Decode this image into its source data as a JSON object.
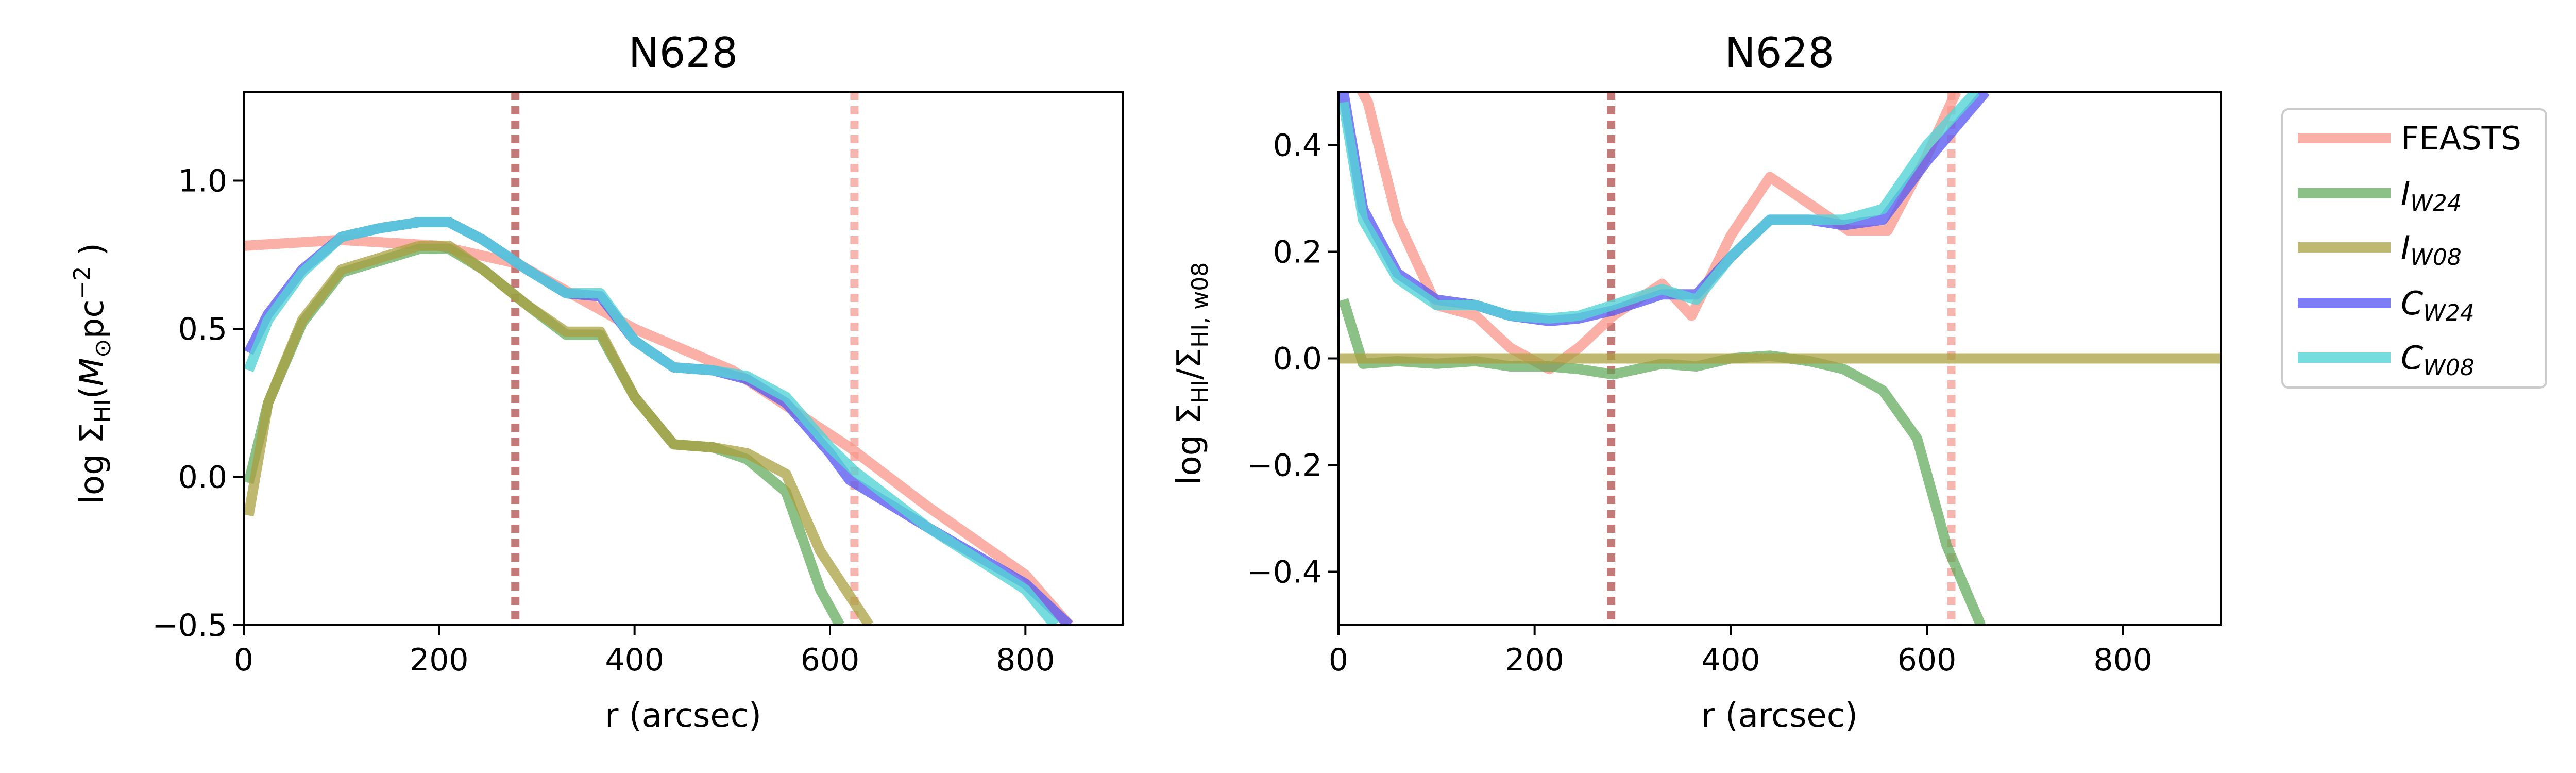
{
  "chart_data": [
    {
      "type": "line",
      "title": "N628",
      "xlabel": "r (arcsec)",
      "ylabel": "log Σ_HI(M_⊙pc^−2 )",
      "xlim": [
        0,
        900
      ],
      "ylim": [
        -0.5,
        1.3
      ],
      "xticks": [
        "0",
        "200",
        "400",
        "600",
        "800"
      ],
      "xtick_values": [
        0,
        200,
        400,
        600,
        800
      ],
      "yticks": [
        "−0.5",
        "0.0",
        "0.5",
        "1.0"
      ],
      "ytick_values": [
        -0.5,
        0.0,
        0.5,
        1.0
      ],
      "vlines": [
        {
          "x": 278,
          "color": "#c57a7a"
        },
        {
          "x": 625,
          "color": "#f5b6b0"
        }
      ],
      "series": [
        {
          "name": "FEASTS",
          "color": "#f8968a",
          "opacity": 0.75,
          "x": [
            0,
            100,
            200,
            280,
            400,
            500,
            560,
            620,
            700,
            800,
            845
          ],
          "y": [
            0.78,
            0.8,
            0.78,
            0.72,
            0.5,
            0.36,
            0.23,
            0.1,
            -0.1,
            -0.33,
            -0.5
          ]
        },
        {
          "name": "I_W24",
          "color": "#5aa552",
          "opacity": 0.7,
          "x": [
            5,
            25,
            60,
            100,
            140,
            180,
            210,
            245,
            290,
            330,
            365,
            400,
            440,
            480,
            515,
            555,
            590,
            610
          ],
          "y": [
            -0.02,
            0.25,
            0.52,
            0.69,
            0.73,
            0.77,
            0.77,
            0.7,
            0.58,
            0.48,
            0.48,
            0.27,
            0.11,
            0.1,
            0.06,
            -0.05,
            -0.38,
            -0.5
          ]
        },
        {
          "name": "I_W08",
          "color": "#a9a040",
          "opacity": 0.75,
          "x": [
            5,
            25,
            60,
            100,
            140,
            180,
            210,
            245,
            290,
            330,
            365,
            400,
            440,
            480,
            515,
            555,
            590,
            640
          ],
          "y": [
            -0.13,
            0.25,
            0.53,
            0.7,
            0.74,
            0.78,
            0.78,
            0.7,
            0.58,
            0.49,
            0.49,
            0.27,
            0.11,
            0.1,
            0.08,
            0.01,
            -0.25,
            -0.5
          ]
        },
        {
          "name": "C_W24",
          "color": "#5d5ef0",
          "opacity": 0.8,
          "x": [
            5,
            25,
            60,
            100,
            140,
            180,
            210,
            245,
            290,
            330,
            365,
            400,
            440,
            480,
            515,
            555,
            600,
            620,
            700,
            800,
            845
          ],
          "y": [
            0.42,
            0.55,
            0.7,
            0.81,
            0.84,
            0.86,
            0.86,
            0.8,
            0.7,
            0.62,
            0.61,
            0.46,
            0.37,
            0.36,
            0.33,
            0.25,
            0.08,
            -0.01,
            -0.17,
            -0.36,
            -0.5
          ]
        },
        {
          "name": "C_W08",
          "color": "#55d3d6",
          "opacity": 0.8,
          "x": [
            5,
            25,
            60,
            100,
            140,
            180,
            210,
            245,
            290,
            330,
            365,
            400,
            440,
            480,
            515,
            555,
            600,
            625,
            700,
            800,
            830
          ],
          "y": [
            0.36,
            0.53,
            0.69,
            0.81,
            0.84,
            0.86,
            0.86,
            0.8,
            0.7,
            0.62,
            0.62,
            0.46,
            0.37,
            0.36,
            0.34,
            0.27,
            0.1,
            0.02,
            -0.17,
            -0.38,
            -0.5
          ]
        }
      ]
    },
    {
      "type": "line",
      "title": "N628",
      "xlabel": "r (arcsec)",
      "ylabel": "log Σ_HI/Σ_HI, w08",
      "xlim": [
        0,
        900
      ],
      "ylim": [
        -0.5,
        0.5
      ],
      "xticks": [
        "0",
        "200",
        "400",
        "600",
        "800"
      ],
      "xtick_values": [
        0,
        200,
        400,
        600,
        800
      ],
      "yticks": [
        "−0.4",
        "−0.2",
        "0.0",
        "0.2",
        "0.4"
      ],
      "ytick_values": [
        -0.4,
        -0.2,
        0.0,
        0.2,
        0.4
      ],
      "vlines": [
        {
          "x": 278,
          "color": "#c57a7a"
        },
        {
          "x": 625,
          "color": "#f5b6b0"
        }
      ],
      "series": [
        {
          "name": "FEASTS",
          "color": "#f8968a",
          "opacity": 0.75,
          "x": [
            10,
            30,
            60,
            100,
            140,
            175,
            215,
            245,
            280,
            330,
            360,
            400,
            440,
            480,
            520,
            560,
            600,
            630
          ],
          "y": [
            0.55,
            0.48,
            0.26,
            0.1,
            0.08,
            0.02,
            -0.02,
            0.02,
            0.08,
            0.14,
            0.08,
            0.23,
            0.34,
            0.29,
            0.24,
            0.24,
            0.38,
            0.5
          ]
        },
        {
          "name": "I_W24",
          "color": "#5aa552",
          "opacity": 0.7,
          "x": [
            5,
            25,
            60,
            100,
            140,
            175,
            215,
            245,
            280,
            330,
            365,
            400,
            440,
            480,
            515,
            555,
            590,
            620,
            655
          ],
          "y": [
            0.11,
            -0.01,
            -0.005,
            -0.01,
            -0.005,
            -0.015,
            -0.015,
            -0.02,
            -0.03,
            -0.01,
            -0.015,
            0.0,
            0.005,
            -0.005,
            -0.02,
            -0.06,
            -0.15,
            -0.35,
            -0.5
          ]
        },
        {
          "name": "I_W08",
          "color": "#a9a040",
          "opacity": 0.75,
          "x": [
            0,
            900
          ],
          "y": [
            0.0,
            0.0
          ]
        },
        {
          "name": "C_W24",
          "color": "#5d5ef0",
          "opacity": 0.8,
          "x": [
            5,
            25,
            60,
            100,
            140,
            175,
            215,
            245,
            280,
            330,
            365,
            400,
            440,
            480,
            515,
            555,
            600,
            660
          ],
          "y": [
            0.5,
            0.28,
            0.16,
            0.11,
            0.1,
            0.08,
            0.07,
            0.075,
            0.09,
            0.12,
            0.12,
            0.19,
            0.26,
            0.26,
            0.25,
            0.26,
            0.37,
            0.5
          ]
        },
        {
          "name": "C_W08",
          "color": "#55d3d6",
          "opacity": 0.8,
          "x": [
            5,
            25,
            60,
            100,
            140,
            175,
            215,
            245,
            280,
            330,
            365,
            400,
            440,
            480,
            515,
            555,
            600,
            650
          ],
          "y": [
            0.48,
            0.26,
            0.15,
            0.1,
            0.1,
            0.08,
            0.075,
            0.08,
            0.1,
            0.13,
            0.11,
            0.19,
            0.26,
            0.26,
            0.26,
            0.28,
            0.4,
            0.5
          ]
        }
      ]
    }
  ],
  "legend": {
    "placement": "right",
    "items": [
      {
        "label": "FEASTS",
        "color": "#f8968a"
      },
      {
        "label": "I",
        "sub": "W24",
        "color": "#5aa552"
      },
      {
        "label": "I",
        "sub": "W08",
        "color": "#a9a040"
      },
      {
        "label": "C",
        "sub": "W24",
        "color": "#5d5ef0"
      },
      {
        "label": "C",
        "sub": "W08",
        "color": "#55d3d6"
      }
    ]
  }
}
